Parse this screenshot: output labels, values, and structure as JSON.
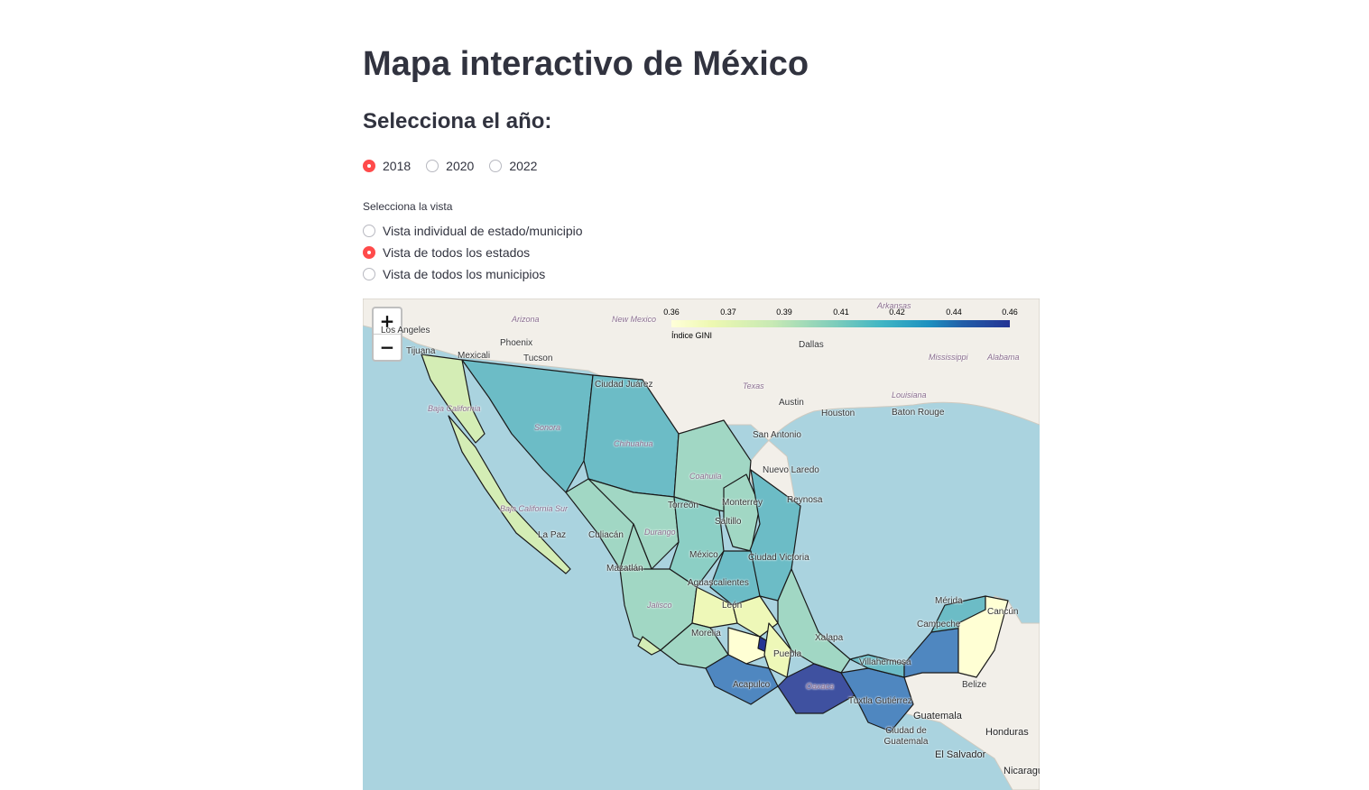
{
  "page": {
    "title": "Mapa interactivo de México",
    "year_heading": "Selecciona el año:"
  },
  "year_options": [
    {
      "label": "2018",
      "selected": true
    },
    {
      "label": "2020",
      "selected": false
    },
    {
      "label": "2022",
      "selected": false
    }
  ],
  "view": {
    "label": "Selecciona la vista",
    "options": [
      {
        "label": "Vista individual de estado/municipio",
        "selected": false
      },
      {
        "label": "Vista de todos los estados",
        "selected": true
      },
      {
        "label": "Vista de todos los municipios",
        "selected": false
      }
    ]
  },
  "map": {
    "zoom_in": "+",
    "zoom_out": "−",
    "legend": {
      "ticks": [
        "0.36",
        "0.37",
        "0.39",
        "0.41",
        "0.42",
        "0.44",
        "0.46"
      ],
      "caption": "Índice GINI"
    },
    "places": {
      "los_angeles": "Los Angeles",
      "arizona": "Arizona",
      "new_mexico": "New Mexico",
      "arkansas": "Arkansas",
      "phoenix": "Phoenix",
      "tijuana": "Tijuana",
      "mexicali": "Mexicali",
      "tucson": "Tucson",
      "dallas": "Dallas",
      "mississippi": "Mississippi",
      "alabama": "Alabama",
      "ciudad_juarez": "Ciudad Juárez",
      "texas": "Texas",
      "louisiana": "Louisiana",
      "baja_california": "Baja California",
      "austin": "Austin",
      "houston": "Houston",
      "baton_rouge": "Baton Rouge",
      "sonora": "Sonora",
      "chihuahua": "Chihuahua",
      "san_antonio": "San Antonio",
      "nuevo_laredo": "Nuevo Laredo",
      "coahuila": "Coahuila",
      "reynosa": "Reynosa",
      "torreon": "Torreón",
      "monterrey": "Monterrey",
      "saltillo": "Saltillo",
      "baja_california_sur": "Baja California Sur",
      "la_paz": "La Paz",
      "culiacan": "Culiacán",
      "durango": "Durango",
      "mazatlan": "Mazatlán",
      "ciudad_victoria": "Ciudad Victoria",
      "mexico": "México",
      "aguascalientes": "Aguascalientes",
      "merida": "Mérida",
      "cancun": "Cancún",
      "jalisco": "Jalisco",
      "leon": "León",
      "campeche": "Campeche",
      "xalapa": "Xalapa",
      "morelia": "Morelia",
      "puebla": "Puebla",
      "villahermosa": "Villahermosa",
      "acapulco": "Acapulco",
      "oaxaca": "Oaxaca",
      "belize": "Belize",
      "tuxtla_gutierrez": "Tuxtla Gutiérrez",
      "guatemala": "Guatemala",
      "ciudad_de_guatemala": "Ciudad de Guatemala",
      "honduras": "Honduras",
      "el_salvador": "El Salvador",
      "nicaragua": "Nicaragua"
    }
  },
  "colors": {
    "accent": "#ff4b4b",
    "ocean": "#aad3df",
    "land": "#f2efe9"
  }
}
